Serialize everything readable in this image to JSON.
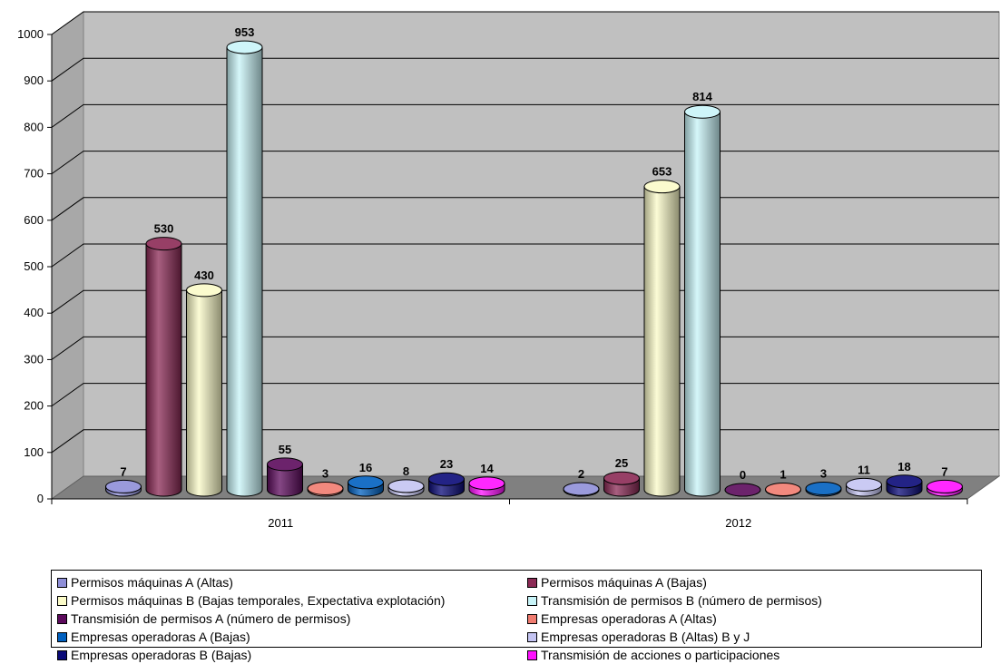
{
  "chart_data": {
    "type": "bar",
    "style": "3d-cylinder",
    "categories": [
      "2011",
      "2012"
    ],
    "ylim": [
      0,
      1000
    ],
    "yticks": [
      "0",
      "100",
      "200",
      "300",
      "400",
      "500",
      "600",
      "700",
      "800",
      "900",
      "1000"
    ],
    "grid": true,
    "legend_position": "bottom",
    "series": [
      {
        "name": "Permisos máquinas A (Altas)",
        "color": "#8f8fd8",
        "values": [
          7,
          2
        ]
      },
      {
        "name": "Permisos máquinas A (Bajas)",
        "color": "#8b2a55",
        "values": [
          530,
          25
        ]
      },
      {
        "name": "Permisos máquinas B (Bajas temporales, Expectativa explotación)",
        "color": "#fbfbc8",
        "values": [
          430,
          653
        ]
      },
      {
        "name": "Transmisión de permisos B (número de permisos)",
        "color": "#c8f4f8",
        "values": [
          953,
          814
        ]
      },
      {
        "name": "Transmisión de permisos A (número de permisos)",
        "color": "#5c0a5c",
        "values": [
          55,
          0
        ]
      },
      {
        "name": "Empresas operadoras A (Altas)",
        "color": "#f07c70",
        "values": [
          3,
          1
        ]
      },
      {
        "name": "Empresas operadoras A (Bajas)",
        "color": "#0060c0",
        "values": [
          16,
          3
        ]
      },
      {
        "name": "Empresas operadoras B (Altas) B y J",
        "color": "#c4c4f2",
        "values": [
          8,
          11
        ]
      },
      {
        "name": "Empresas operadoras B (Bajas)",
        "color": "#0a0a78",
        "values": [
          23,
          18
        ]
      },
      {
        "name": "Transmisión de acciones o participaciones",
        "color": "#ff10ff",
        "values": [
          14,
          7
        ]
      }
    ]
  }
}
